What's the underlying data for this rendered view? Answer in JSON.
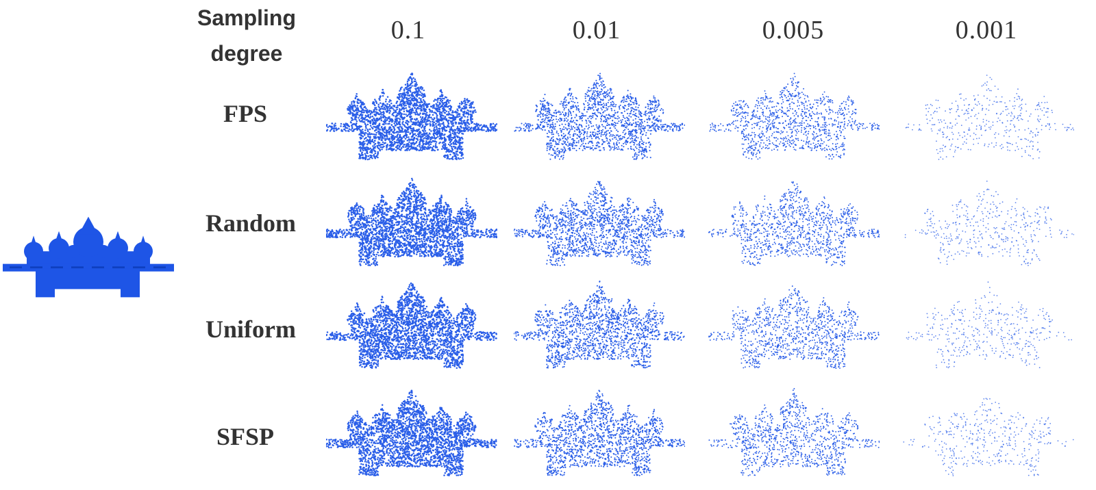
{
  "header": {
    "title_line1": "Sampling",
    "title_line2": "degree"
  },
  "columns": [
    "0.1",
    "0.01",
    "0.005",
    "0.001"
  ],
  "rows": [
    "FPS",
    "Random",
    "Uniform",
    "SFSP"
  ],
  "colors": {
    "mesh": "#1e55e6",
    "points": "#2a5ee8",
    "text": "#333333"
  },
  "icons": {
    "reference": "solid-blue-mesh-model",
    "cells": "blue-point-cloud"
  }
}
